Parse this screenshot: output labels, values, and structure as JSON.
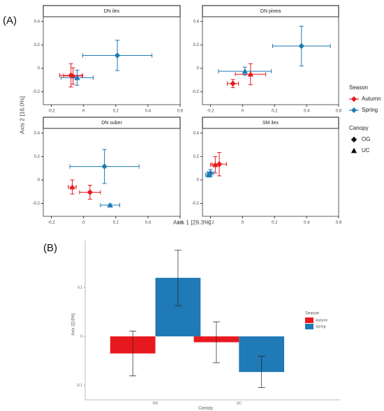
{
  "panel_labels": [
    "(A)",
    "(B)"
  ],
  "facet_axes": {
    "xlabel": "Axis 1 [29.3%]",
    "ylabel": "Axis 2 [16.0%]"
  },
  "season_legend_title": "Season",
  "canopy_legend": {
    "title": "Canopy",
    "labels": [
      "OG",
      "UC"
    ]
  },
  "chart_data": [
    {
      "type": "scatter",
      "title": "DN ilex",
      "xlim": [
        -0.25,
        0.6
      ],
      "ylim": [
        -0.31,
        0.44
      ],
      "xticks": [
        -0.2,
        0,
        0.2,
        0.4,
        0.6
      ],
      "yticks": [
        -0.2,
        0,
        0.2,
        0.4
      ],
      "series": [
        {
          "name": "Autumn",
          "color": "#e8191e",
          "canopy": [
            "OG",
            "UC"
          ],
          "x": [
            -0.078,
            -0.065
          ],
          "y": [
            -0.06,
            -0.065
          ],
          "xerr": [
            0.07,
            0.06
          ],
          "yerr": [
            0.1,
            0.07
          ]
        },
        {
          "name": "Spring",
          "color": "#1f7ab5",
          "canopy": [
            "OG",
            "UC"
          ],
          "x": [
            0.21,
            -0.04
          ],
          "y": [
            0.11,
            -0.08
          ],
          "xerr": [
            0.215,
            0.1
          ],
          "yerr": [
            0.13,
            0.065
          ]
        }
      ]
    },
    {
      "type": "scatter",
      "title": "DN pinea",
      "xlim": [
        -0.25,
        0.6
      ],
      "ylim": [
        -0.31,
        0.44
      ],
      "xticks": [
        -0.2,
        0,
        0.2,
        0.4,
        0.6
      ],
      "yticks": [
        -0.2,
        0,
        0.2,
        0.4
      ],
      "series": [
        {
          "name": "Autumn",
          "color": "#e8191e",
          "canopy": [
            "OG",
            "UC"
          ],
          "x": [
            -0.06,
            0.05
          ],
          "y": [
            -0.13,
            -0.05
          ],
          "xerr": [
            0.035,
            0.095
          ],
          "yerr": [
            0.035,
            0.09
          ]
        },
        {
          "name": "Spring",
          "color": "#1f7ab5",
          "canopy": [
            "OG",
            "UC"
          ],
          "x": [
            0.368,
            0.015
          ],
          "y": [
            0.19,
            -0.025
          ],
          "xerr": [
            0.18,
            0.165
          ],
          "yerr": [
            0.17,
            0.035
          ]
        }
      ]
    },
    {
      "type": "scatter",
      "title": "DN suber",
      "xlim": [
        -0.25,
        0.6
      ],
      "ylim": [
        -0.31,
        0.44
      ],
      "xticks": [
        -0.2,
        0,
        0.2,
        0.4,
        0.6
      ],
      "yticks": [
        -0.2,
        0,
        0.2,
        0.4
      ],
      "series": [
        {
          "name": "Autumn",
          "color": "#e8191e",
          "canopy": [
            "OG",
            "UC"
          ],
          "x": [
            0.04,
            -0.07
          ],
          "y": [
            -0.105,
            -0.06
          ],
          "xerr": [
            0.065,
            0.025
          ],
          "yerr": [
            0.06,
            0.06
          ]
        },
        {
          "name": "Spring",
          "color": "#1f7ab5",
          "canopy": [
            "OG",
            "UC"
          ],
          "x": [
            0.13,
            0.165
          ],
          "y": [
            0.115,
            -0.215
          ],
          "xerr": [
            0.215,
            0.06
          ],
          "yerr": [
            0.145,
            0.01
          ]
        }
      ]
    },
    {
      "type": "scatter",
      "title": "SM ilex",
      "xlim": [
        -0.25,
        0.6
      ],
      "ylim": [
        -0.31,
        0.44
      ],
      "xticks": [
        -0.2,
        0,
        0.2,
        0.4,
        0.6
      ],
      "yticks": [
        -0.2,
        0,
        0.2,
        0.4
      ],
      "series": [
        {
          "name": "Autumn",
          "color": "#e8191e",
          "canopy": [
            "OG",
            "UC"
          ],
          "x": [
            -0.145,
            -0.17
          ],
          "y": [
            0.135,
            0.13
          ],
          "xerr": [
            0.045,
            0.03
          ],
          "yerr": [
            0.1,
            0.07
          ]
        },
        {
          "name": "Spring",
          "color": "#1f7ab5",
          "canopy": [
            "OG",
            "UC"
          ],
          "x": [
            -0.2,
            -0.21
          ],
          "y": [
            0.06,
            0.045
          ],
          "xerr": [
            0.02,
            0.02
          ],
          "yerr": [
            0.03,
            0.02
          ]
        }
      ]
    },
    {
      "type": "bar",
      "categories": [
        "OG",
        "UC"
      ],
      "xlabel": "Canopy",
      "ylabel": "Axis 2[16%]",
      "legend_title": "Season",
      "ylim": [
        -0.13,
        0.196
      ],
      "yticks": [
        -0.1,
        0,
        0.1
      ],
      "series": [
        {
          "name": "Autumn",
          "color": "#e8191e",
          "values": [
            -0.035,
            -0.012
          ],
          "errors": [
            0.046,
            0.042
          ]
        },
        {
          "name": "Spring",
          "color": "#1f7ab5",
          "values": [
            0.12,
            -0.073
          ],
          "errors": [
            0.057,
            0.032
          ]
        }
      ]
    }
  ]
}
